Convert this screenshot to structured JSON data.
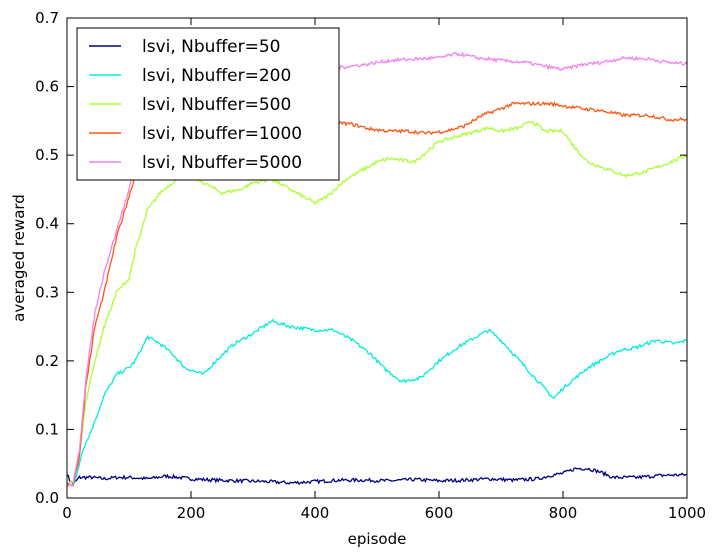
{
  "chart_data": {
    "type": "line",
    "title": "",
    "xlabel": "episode",
    "ylabel": "averaged reward",
    "xlim": [
      0,
      1000
    ],
    "ylim": [
      0,
      0.7
    ],
    "xticks": [
      0,
      200,
      400,
      600,
      800,
      1000
    ],
    "yticks": [
      0,
      0.1,
      0.2,
      0.3,
      0.4,
      0.5,
      0.6,
      0.7
    ],
    "xtick_labels": [
      "0",
      "200",
      "400",
      "600",
      "800",
      "1000"
    ],
    "ytick_labels": [
      "0.0",
      "0.1",
      "0.2",
      "0.3",
      "0.4",
      "0.5",
      "0.6",
      "0.7"
    ],
    "legend_position": "top-left",
    "grid": false,
    "series": [
      {
        "name": "lsvi, Nbuffer=50",
        "color": "#000080",
        "points": [
          [
            0,
            0.035
          ],
          [
            5,
            0.025
          ],
          [
            10,
            0.02
          ],
          [
            15,
            0.025
          ],
          [
            20,
            0.03
          ],
          [
            40,
            0.03
          ],
          [
            60,
            0.028
          ],
          [
            80,
            0.03
          ],
          [
            100,
            0.03
          ],
          [
            130,
            0.028
          ],
          [
            160,
            0.032
          ],
          [
            200,
            0.028
          ],
          [
            240,
            0.026
          ],
          [
            280,
            0.025
          ],
          [
            320,
            0.024
          ],
          [
            360,
            0.022
          ],
          [
            400,
            0.024
          ],
          [
            440,
            0.026
          ],
          [
            480,
            0.026
          ],
          [
            520,
            0.025
          ],
          [
            560,
            0.027
          ],
          [
            600,
            0.025
          ],
          [
            640,
            0.026
          ],
          [
            680,
            0.028
          ],
          [
            720,
            0.026
          ],
          [
            760,
            0.028
          ],
          [
            780,
            0.033
          ],
          [
            800,
            0.036
          ],
          [
            820,
            0.043
          ],
          [
            840,
            0.043
          ],
          [
            860,
            0.038
          ],
          [
            880,
            0.03
          ],
          [
            920,
            0.03
          ],
          [
            960,
            0.033
          ],
          [
            1000,
            0.034
          ]
        ]
      },
      {
        "name": "lsvi, Nbuffer=200",
        "color": "#00eedd",
        "points": [
          [
            0,
            0.02
          ],
          [
            10,
            0.02
          ],
          [
            15,
            0.03
          ],
          [
            25,
            0.07
          ],
          [
            40,
            0.1
          ],
          [
            60,
            0.15
          ],
          [
            80,
            0.18
          ],
          [
            100,
            0.19
          ],
          [
            110,
            0.2
          ],
          [
            130,
            0.235
          ],
          [
            150,
            0.225
          ],
          [
            170,
            0.21
          ],
          [
            190,
            0.19
          ],
          [
            220,
            0.18
          ],
          [
            240,
            0.2
          ],
          [
            270,
            0.225
          ],
          [
            300,
            0.24
          ],
          [
            330,
            0.258
          ],
          [
            360,
            0.25
          ],
          [
            400,
            0.245
          ],
          [
            430,
            0.245
          ],
          [
            460,
            0.23
          ],
          [
            490,
            0.21
          ],
          [
            510,
            0.19
          ],
          [
            540,
            0.17
          ],
          [
            570,
            0.175
          ],
          [
            600,
            0.2
          ],
          [
            630,
            0.22
          ],
          [
            660,
            0.235
          ],
          [
            680,
            0.245
          ],
          [
            700,
            0.23
          ],
          [
            720,
            0.21
          ],
          [
            750,
            0.18
          ],
          [
            770,
            0.16
          ],
          [
            785,
            0.145
          ],
          [
            800,
            0.16
          ],
          [
            820,
            0.175
          ],
          [
            840,
            0.19
          ],
          [
            870,
            0.205
          ],
          [
            890,
            0.215
          ],
          [
            920,
            0.22
          ],
          [
            950,
            0.23
          ],
          [
            980,
            0.225
          ],
          [
            1000,
            0.23
          ]
        ]
      },
      {
        "name": "lsvi, Nbuffer=500",
        "color": "#aaff33",
        "points": [
          [
            0,
            0.02
          ],
          [
            10,
            0.025
          ],
          [
            20,
            0.06
          ],
          [
            30,
            0.14
          ],
          [
            45,
            0.2
          ],
          [
            60,
            0.25
          ],
          [
            80,
            0.3
          ],
          [
            100,
            0.32
          ],
          [
            110,
            0.36
          ],
          [
            130,
            0.42
          ],
          [
            150,
            0.445
          ],
          [
            170,
            0.46
          ],
          [
            190,
            0.47
          ],
          [
            210,
            0.465
          ],
          [
            230,
            0.455
          ],
          [
            250,
            0.445
          ],
          [
            280,
            0.45
          ],
          [
            300,
            0.46
          ],
          [
            330,
            0.465
          ],
          [
            360,
            0.45
          ],
          [
            380,
            0.44
          ],
          [
            400,
            0.43
          ],
          [
            420,
            0.44
          ],
          [
            450,
            0.465
          ],
          [
            480,
            0.48
          ],
          [
            500,
            0.49
          ],
          [
            520,
            0.495
          ],
          [
            560,
            0.49
          ],
          [
            580,
            0.505
          ],
          [
            600,
            0.52
          ],
          [
            640,
            0.53
          ],
          [
            680,
            0.54
          ],
          [
            700,
            0.535
          ],
          [
            730,
            0.54
          ],
          [
            750,
            0.55
          ],
          [
            770,
            0.535
          ],
          [
            800,
            0.535
          ],
          [
            820,
            0.51
          ],
          [
            840,
            0.49
          ],
          [
            870,
            0.48
          ],
          [
            900,
            0.47
          ],
          [
            930,
            0.475
          ],
          [
            960,
            0.485
          ],
          [
            1000,
            0.5
          ]
        ]
      },
      {
        "name": "lsvi, Nbuffer=1000",
        "color": "#ff5511",
        "points": [
          [
            0,
            0.02
          ],
          [
            10,
            0.02
          ],
          [
            20,
            0.06
          ],
          [
            30,
            0.16
          ],
          [
            45,
            0.25
          ],
          [
            60,
            0.3
          ],
          [
            80,
            0.38
          ],
          [
            100,
            0.44
          ],
          [
            110,
            0.47
          ],
          [
            125,
            0.49
          ],
          [
            400,
            0.55
          ],
          [
            430,
            0.548
          ],
          [
            460,
            0.545
          ],
          [
            490,
            0.538
          ],
          [
            520,
            0.535
          ],
          [
            550,
            0.535
          ],
          [
            580,
            0.532
          ],
          [
            610,
            0.535
          ],
          [
            640,
            0.542
          ],
          [
            670,
            0.558
          ],
          [
            700,
            0.568
          ],
          [
            720,
            0.575
          ],
          [
            750,
            0.575
          ],
          [
            780,
            0.575
          ],
          [
            800,
            0.572
          ],
          [
            830,
            0.568
          ],
          [
            860,
            0.565
          ],
          [
            900,
            0.558
          ],
          [
            940,
            0.558
          ],
          [
            970,
            0.552
          ],
          [
            1000,
            0.552
          ]
        ]
      },
      {
        "name": "lsvi, Nbuffer=5000",
        "color": "#ee82ee",
        "points": [
          [
            0,
            0.018
          ],
          [
            10,
            0.02
          ],
          [
            20,
            0.07
          ],
          [
            30,
            0.17
          ],
          [
            45,
            0.27
          ],
          [
            60,
            0.33
          ],
          [
            80,
            0.39
          ],
          [
            100,
            0.45
          ],
          [
            110,
            0.48
          ],
          [
            120,
            0.5
          ],
          [
            400,
            0.625
          ],
          [
            440,
            0.628
          ],
          [
            480,
            0.632
          ],
          [
            520,
            0.638
          ],
          [
            560,
            0.64
          ],
          [
            600,
            0.642
          ],
          [
            630,
            0.648
          ],
          [
            660,
            0.642
          ],
          [
            700,
            0.638
          ],
          [
            740,
            0.635
          ],
          [
            780,
            0.628
          ],
          [
            800,
            0.625
          ],
          [
            830,
            0.632
          ],
          [
            860,
            0.635
          ],
          [
            900,
            0.642
          ],
          [
            940,
            0.64
          ],
          [
            970,
            0.635
          ],
          [
            1000,
            0.633
          ]
        ]
      }
    ]
  }
}
